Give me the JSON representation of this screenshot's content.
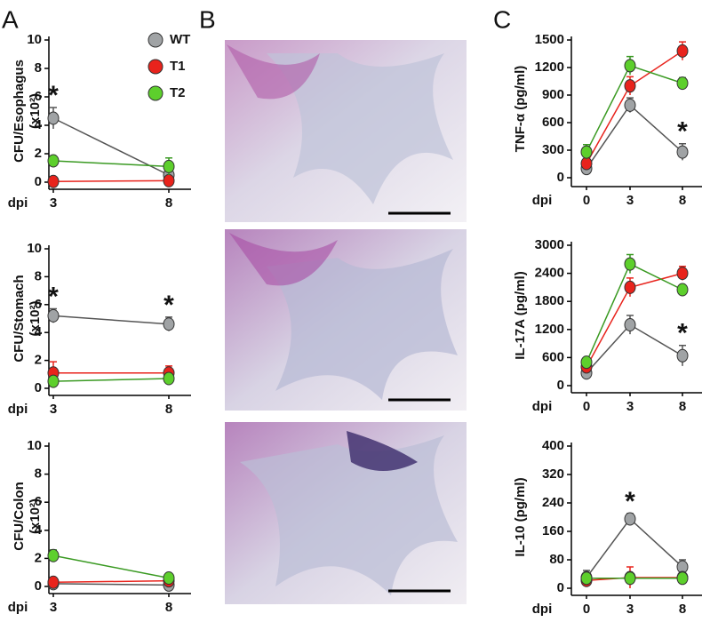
{
  "panel_labels": [
    "A",
    "B",
    "C"
  ],
  "chart_data": [
    {
      "type": "line",
      "ylabel": [
        "CFU/Esophagus",
        "(x10²)"
      ],
      "x_label": "dpi",
      "categories": [
        "3",
        "8"
      ],
      "ylim": [
        0,
        10
      ],
      "yticks": [
        0,
        2,
        4,
        6,
        8,
        10
      ],
      "legend": "upper right",
      "series": [
        {
          "name": "WT",
          "color": "#a0a3a5",
          "line_color": "#555555",
          "values": [
            4.5,
            0.5
          ],
          "errors": [
            0.75,
            0.4
          ]
        },
        {
          "name": "T1",
          "color": "#e8231c",
          "line_color": "#e8231c",
          "values": [
            0.05,
            0.1
          ],
          "errors": [
            0.1,
            0.2
          ]
        },
        {
          "name": "T2",
          "color": "#5dcf2c",
          "line_color": "#3a9a22",
          "values": [
            1.5,
            1.1
          ],
          "errors": [
            0.3,
            0.6
          ]
        }
      ],
      "annotations": [
        {
          "text": "*",
          "x": "3"
        }
      ]
    },
    {
      "type": "line",
      "ylabel": [
        "CFU/Stomach",
        "(x10²)"
      ],
      "x_label": "dpi",
      "categories": [
        "3",
        "8"
      ],
      "ylim": [
        0,
        10
      ],
      "yticks": [
        0,
        2,
        4,
        6,
        8,
        10
      ],
      "series": [
        {
          "color": "#a0a3a5",
          "line_color": "#555555",
          "values": [
            5.2,
            4.6
          ],
          "errors": [
            0.5,
            0.5
          ]
        },
        {
          "color": "#e8231c",
          "line_color": "#e8231c",
          "values": [
            1.1,
            1.1
          ],
          "errors": [
            0.8,
            0.5
          ]
        },
        {
          "color": "#5dcf2c",
          "line_color": "#3a9a22",
          "values": [
            0.5,
            0.7
          ],
          "errors": [
            0.2,
            0.2
          ]
        }
      ],
      "annotations": [
        {
          "text": "*",
          "x": "3"
        },
        {
          "text": "*",
          "x": "8"
        }
      ]
    },
    {
      "type": "line",
      "ylabel": [
        "CFU/Colon",
        "(x10²)"
      ],
      "x_label": "dpi",
      "categories": [
        "3",
        "8"
      ],
      "ylim": [
        0,
        10
      ],
      "yticks": [
        0,
        2,
        4,
        6,
        8,
        10
      ],
      "series": [
        {
          "color": "#a0a3a5",
          "line_color": "#555555",
          "values": [
            0.2,
            0.1
          ],
          "errors": [
            0.1,
            0.1
          ]
        },
        {
          "color": "#e8231c",
          "line_color": "#e8231c",
          "values": [
            0.3,
            0.4
          ],
          "errors": [
            0.1,
            0.3
          ]
        },
        {
          "color": "#5dcf2c",
          "line_color": "#3a9a22",
          "values": [
            2.2,
            0.6
          ],
          "errors": [
            0.4,
            0.3
          ]
        }
      ]
    },
    {
      "type": "line",
      "ylabel": [
        "TNF-α (pg/ml)"
      ],
      "x_label": "dpi",
      "categories": [
        "0",
        "3",
        "8"
      ],
      "ylim": [
        0,
        1500
      ],
      "yticks": [
        0,
        300,
        600,
        900,
        1200,
        1500
      ],
      "series": [
        {
          "color": "#a0a3a5",
          "line_color": "#555555",
          "values": [
            100,
            790,
            280
          ],
          "errors": [
            40,
            80,
            90
          ]
        },
        {
          "color": "#e8231c",
          "line_color": "#e8231c",
          "values": [
            155,
            1000,
            1380
          ],
          "errors": [
            50,
            100,
            100
          ]
        },
        {
          "color": "#5dcf2c",
          "line_color": "#3a9a22",
          "values": [
            280,
            1220,
            1030
          ],
          "errors": [
            80,
            100,
            60
          ]
        }
      ],
      "annotations": [
        {
          "text": "*",
          "x": "8"
        }
      ]
    },
    {
      "type": "line",
      "ylabel": [
        "IL-17A (pg/ml)"
      ],
      "x_label": "dpi",
      "categories": [
        "0",
        "3",
        "8"
      ],
      "ylim": [
        0,
        3000
      ],
      "yticks": [
        0,
        600,
        1200,
        1800,
        2400,
        3000
      ],
      "series": [
        {
          "color": "#a0a3a5",
          "line_color": "#555555",
          "values": [
            270,
            1300,
            640
          ],
          "errors": [
            60,
            200,
            220
          ]
        },
        {
          "color": "#e8231c",
          "line_color": "#e8231c",
          "values": [
            400,
            2100,
            2400
          ],
          "errors": [
            60,
            200,
            150
          ]
        },
        {
          "color": "#5dcf2c",
          "line_color": "#3a9a22",
          "values": [
            500,
            2600,
            2050
          ],
          "errors": [
            60,
            200,
            80
          ]
        }
      ],
      "annotations": [
        {
          "text": "*",
          "x": "8"
        }
      ]
    },
    {
      "type": "line",
      "ylabel": [
        "IL-10 (pg/ml)"
      ],
      "x_label": "dpi",
      "categories": [
        "0",
        "3",
        "8"
      ],
      "ylim": [
        0,
        400
      ],
      "yticks": [
        0,
        80,
        160,
        240,
        320,
        400
      ],
      "series": [
        {
          "color": "#a0a3a5",
          "line_color": "#555555",
          "values": [
            30,
            195,
            60
          ],
          "errors": [
            20,
            15,
            20
          ]
        },
        {
          "color": "#e8231c",
          "line_color": "#e8231c",
          "values": [
            22,
            30,
            30
          ],
          "errors": [
            10,
            30,
            10
          ]
        },
        {
          "color": "#5dcf2c",
          "line_color": "#3a9a22",
          "values": [
            28,
            28,
            28
          ],
          "errors": [
            15,
            15,
            10
          ]
        }
      ],
      "annotations": [
        {
          "text": "*",
          "x": "3"
        }
      ]
    }
  ]
}
